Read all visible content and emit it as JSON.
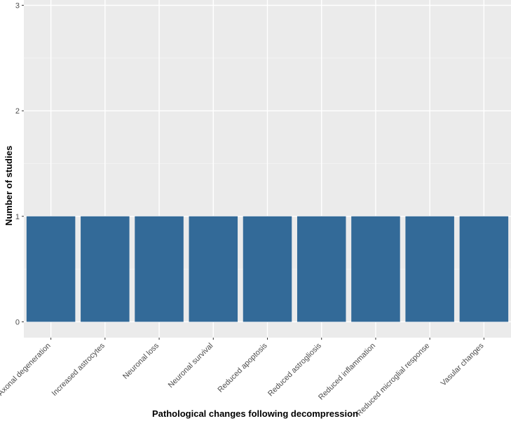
{
  "chart_data": {
    "type": "bar",
    "categories": [
      "Axonal degeneration",
      "Increased astrocytes",
      "Neuronal loss",
      "Neuronal survival",
      "Reduced apoptosis",
      "Reduced astrogliosis",
      "Reduced inflammation",
      "Reduced microglial response",
      "Vasular changes"
    ],
    "values": [
      1,
      1,
      1,
      1,
      1,
      1,
      1,
      1,
      1
    ],
    "xlabel": "Pathological changes following decompression",
    "ylabel": "Number of studies",
    "ylim": [
      -0.15,
      3.05
    ],
    "yticks": [
      0,
      1,
      2,
      3
    ],
    "grid": true,
    "colors": {
      "bar": "#336a98",
      "panel": "#ebebeb",
      "grid_major": "#ffffff",
      "grid_minor": "#f5f5f5"
    }
  }
}
